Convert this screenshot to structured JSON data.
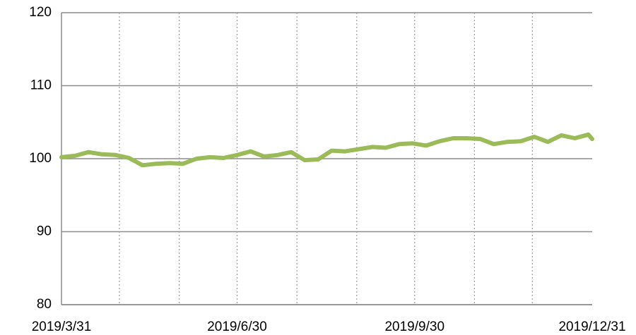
{
  "chart_data": {
    "type": "line",
    "x": [
      "2019/3/31",
      "2019/4/7",
      "2019/4/14",
      "2019/4/21",
      "2019/4/28",
      "2019/5/5",
      "2019/5/12",
      "2019/5/19",
      "2019/5/26",
      "2019/6/2",
      "2019/6/9",
      "2019/6/16",
      "2019/6/23",
      "2019/6/30",
      "2019/7/7",
      "2019/7/14",
      "2019/7/21",
      "2019/7/28",
      "2019/8/4",
      "2019/8/11",
      "2019/8/18",
      "2019/8/25",
      "2019/9/1",
      "2019/9/8",
      "2019/9/15",
      "2019/9/22",
      "2019/9/29",
      "2019/10/6",
      "2019/10/13",
      "2019/10/20",
      "2019/10/27",
      "2019/11/3",
      "2019/11/10",
      "2019/11/17",
      "2019/11/24",
      "2019/12/1",
      "2019/12/8",
      "2019/12/15",
      "2019/12/22",
      "2019/12/29",
      "2019/12/31"
    ],
    "series": [
      {
        "color": "#9bbb59",
        "values": [
          100.2,
          100.4,
          100.9,
          100.6,
          100.5,
          100.1,
          99.1,
          99.3,
          99.4,
          99.3,
          100.0,
          100.2,
          100.1,
          100.5,
          101.0,
          100.3,
          100.5,
          100.9,
          99.8,
          99.9,
          101.1,
          101.0,
          101.3,
          101.6,
          101.5,
          102.0,
          102.1,
          101.8,
          102.4,
          102.8,
          102.8,
          102.7,
          102.0,
          102.3,
          102.4,
          103.0,
          102.3,
          103.2,
          102.8,
          103.3,
          102.7
        ]
      }
    ],
    "xlim": [
      "2019/3/31",
      "2019/12/31"
    ],
    "xticks": [
      "2019/3/31",
      {
        "value": "2019/4/30",
        "label": null
      },
      {
        "value": "2019/5/31",
        "label": null
      },
      "2019/6/30",
      {
        "value": "2019/7/31",
        "label": null
      },
      {
        "value": "2019/8/31",
        "label": null
      },
      "2019/9/30",
      {
        "value": "2019/10/31",
        "label": null
      },
      {
        "value": "2019/11/30",
        "label": null
      },
      "2019/12/31"
    ],
    "ylim": [
      80,
      120
    ],
    "yticks": [
      80,
      90,
      100,
      110,
      120
    ],
    "grid": true
  }
}
